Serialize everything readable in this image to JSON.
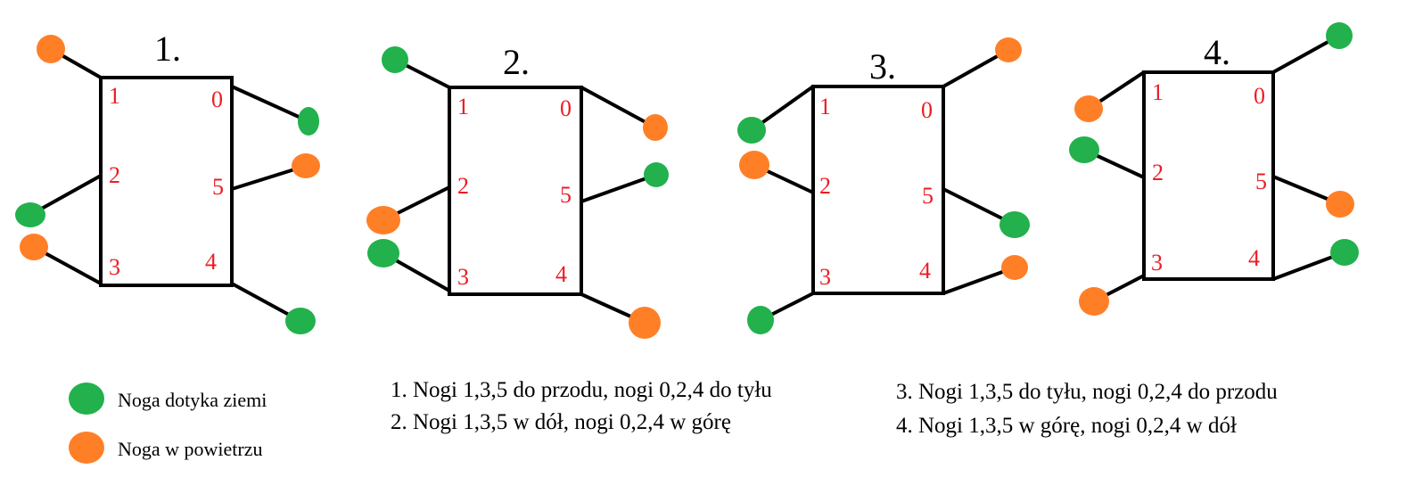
{
  "colors": {
    "ground": "#22b14c",
    "air": "#ff7f27",
    "leg_number": "#ed1c24",
    "line": "#000000"
  },
  "diagrams": [
    {
      "label": "1.",
      "legs": [
        {
          "n": "1",
          "state": "air"
        },
        {
          "n": "0",
          "state": "ground"
        },
        {
          "n": "2",
          "state": "ground"
        },
        {
          "n": "5",
          "state": "air"
        },
        {
          "n": "3",
          "state": "air"
        },
        {
          "n": "4",
          "state": "ground"
        }
      ]
    },
    {
      "label": "2.",
      "legs": [
        {
          "n": "1",
          "state": "ground"
        },
        {
          "n": "0",
          "state": "air"
        },
        {
          "n": "2",
          "state": "air"
        },
        {
          "n": "5",
          "state": "ground"
        },
        {
          "n": "3",
          "state": "ground"
        },
        {
          "n": "4",
          "state": "air"
        }
      ]
    },
    {
      "label": "3.",
      "legs": [
        {
          "n": "1",
          "state": "ground"
        },
        {
          "n": "0",
          "state": "air"
        },
        {
          "n": "2",
          "state": "air"
        },
        {
          "n": "5",
          "state": "ground"
        },
        {
          "n": "3",
          "state": "ground"
        },
        {
          "n": "4",
          "state": "air"
        }
      ]
    },
    {
      "label": "4.",
      "legs": [
        {
          "n": "1",
          "state": "air"
        },
        {
          "n": "0",
          "state": "ground"
        },
        {
          "n": "2",
          "state": "ground"
        },
        {
          "n": "5",
          "state": "air"
        },
        {
          "n": "3",
          "state": "air"
        },
        {
          "n": "4",
          "state": "ground"
        }
      ]
    }
  ],
  "legend": {
    "ground": "Noga dotyka ziemi",
    "air": "Noga w powietrzu"
  },
  "captions": [
    "1. Nogi 1,3,5 do przodu, nogi 0,2,4 do tyłu",
    "2. Nogi 1,3,5 w dół, nogi 0,2,4 w górę",
    "3. Nogi 1,3,5 do tyłu, nogi 0,2,4 do przodu",
    "4. Nogi 1,3,5 w górę, nogi 0,2,4 w dół"
  ]
}
